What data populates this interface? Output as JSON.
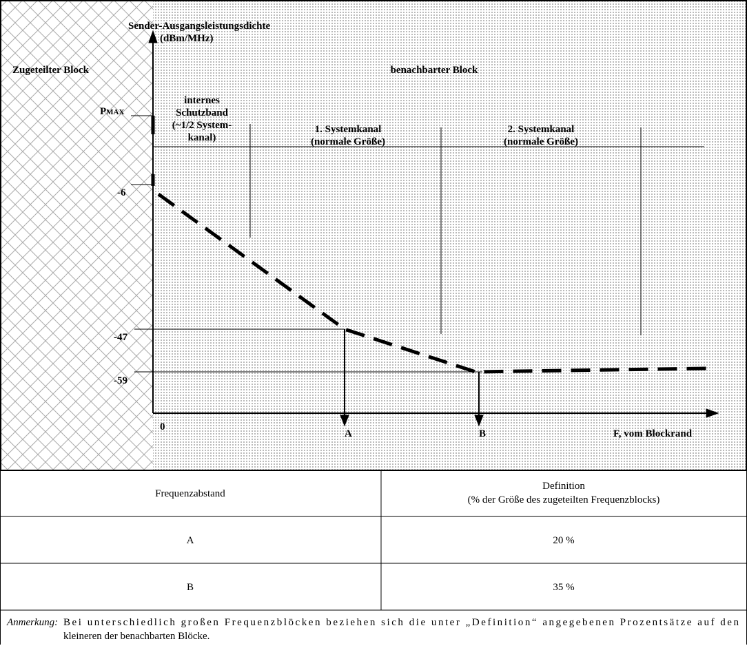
{
  "diagram": {
    "y_axis_title": "Sender-Ausgangsleistungsdichte",
    "y_axis_unit": "(dBm/MHz)",
    "left_region": "Zugeteilter Block",
    "right_region": "benachbarter Block",
    "guard_band": [
      "internes",
      "Schutzband",
      "(~1/2 System-",
      "kanal)"
    ],
    "channel1": [
      "1. Systemkanal",
      "(normale Größe)"
    ],
    "channel2": [
      "2. Systemkanal",
      "(normale Größe)"
    ],
    "pmax_label": "P",
    "pmax_sub": "MAX",
    "levels": [
      "-6",
      "-47",
      "-59"
    ],
    "x_labels": [
      "0",
      "A",
      "B",
      "F, vom Blockrand"
    ]
  },
  "table": {
    "header": [
      "Frequenzabstand",
      "Definition",
      "(% der Größe des zugeteilten Frequenzblocks)"
    ],
    "rows": [
      [
        "A",
        "20 %"
      ],
      [
        "B",
        "35 %"
      ]
    ],
    "note_label": "Anmerkung:",
    "note_text": "Bei unterschiedlich großen Frequenzblöcken beziehen sich die unter „Definition“ angegebenen Prozentsätze auf den",
    "note_text2": "kleineren der benachbarten Blöcke."
  }
}
